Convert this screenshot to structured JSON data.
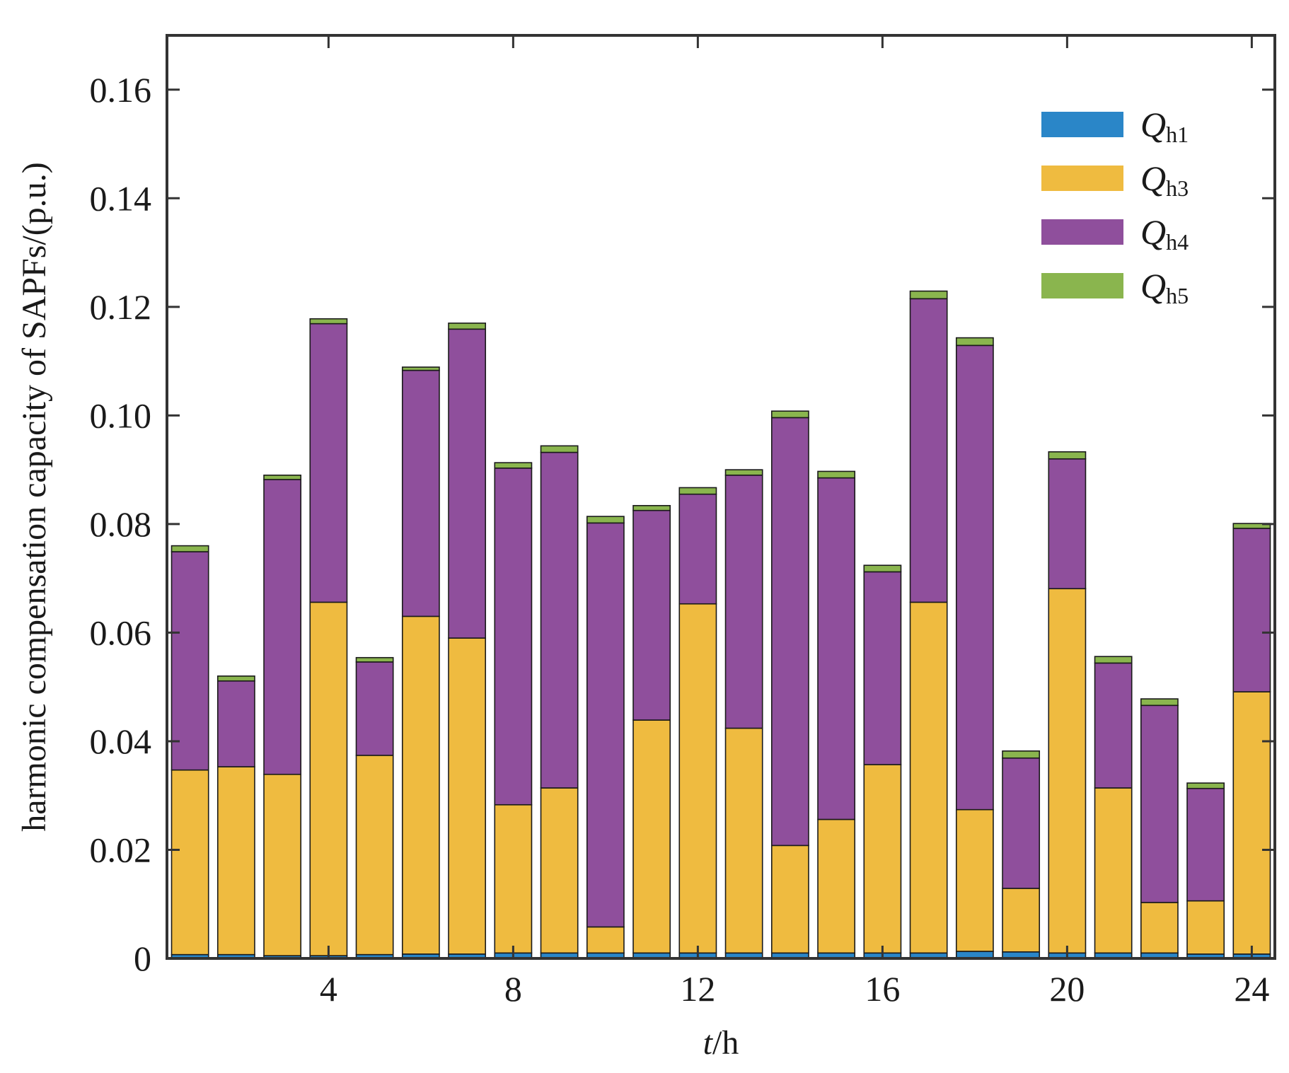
{
  "chart_data": {
    "type": "stacked-bar",
    "title": "",
    "xlabel_var": "t",
    "xlabel_unit": "/h",
    "ylabel": "harmonic compensation capacity of SAPFs/(p.u.)",
    "xlim": [
      0.5,
      24.5
    ],
    "ylim": [
      0,
      0.17
    ],
    "xticks": [
      4,
      8,
      12,
      16,
      20,
      24
    ],
    "xtick_labels": [
      "4",
      "8",
      "12",
      "16",
      "20",
      "24"
    ],
    "yticks": [
      0,
      0.02,
      0.04,
      0.06,
      0.08,
      0.1,
      0.12,
      0.14,
      0.16
    ],
    "ytick_labels": [
      "0",
      "0.02",
      "0.04",
      "0.06",
      "0.08",
      "0.10",
      "0.12",
      "0.14",
      "0.16"
    ],
    "categories": [
      1,
      2,
      3,
      4,
      5,
      6,
      7,
      8,
      9,
      10,
      11,
      12,
      13,
      14,
      15,
      16,
      17,
      18,
      19,
      20,
      21,
      22,
      23,
      24
    ],
    "legend_position": "top-right",
    "series": [
      {
        "name": "Q",
        "sub": "h1",
        "color": "#2a86c8",
        "values": [
          0.0007,
          0.0007,
          0.0005,
          0.0005,
          0.0007,
          0.0008,
          0.0008,
          0.001,
          0.001,
          0.001,
          0.001,
          0.001,
          0.001,
          0.001,
          0.001,
          0.001,
          0.001,
          0.0013,
          0.0012,
          0.001,
          0.001,
          0.001,
          0.0008,
          0.0008
        ]
      },
      {
        "name": "Q",
        "sub": "h3",
        "color": "#efbb40",
        "values": [
          0.034,
          0.0346,
          0.0334,
          0.0651,
          0.0367,
          0.0622,
          0.0582,
          0.0273,
          0.0304,
          0.0048,
          0.0429,
          0.0643,
          0.0414,
          0.0198,
          0.0246,
          0.0347,
          0.0646,
          0.0261,
          0.0117,
          0.0671,
          0.0304,
          0.0093,
          0.0098,
          0.0483
        ]
      },
      {
        "name": "Q",
        "sub": "h4",
        "color": "#8f4f9c",
        "values": [
          0.0402,
          0.0158,
          0.0543,
          0.0513,
          0.0172,
          0.0453,
          0.0569,
          0.062,
          0.0618,
          0.0744,
          0.0386,
          0.0202,
          0.0466,
          0.0788,
          0.0629,
          0.0355,
          0.0559,
          0.0855,
          0.024,
          0.0239,
          0.023,
          0.0363,
          0.0207,
          0.0301
        ]
      },
      {
        "name": "Q",
        "sub": "h5",
        "color": "#8ab54e",
        "values": [
          0.0011,
          0.0009,
          0.0008,
          0.0009,
          0.0008,
          0.0006,
          0.0011,
          0.001,
          0.0012,
          0.0012,
          0.0009,
          0.0012,
          0.001,
          0.0012,
          0.0012,
          0.0012,
          0.0014,
          0.0014,
          0.0013,
          0.0013,
          0.0012,
          0.0012,
          0.001,
          0.0009
        ]
      }
    ]
  }
}
